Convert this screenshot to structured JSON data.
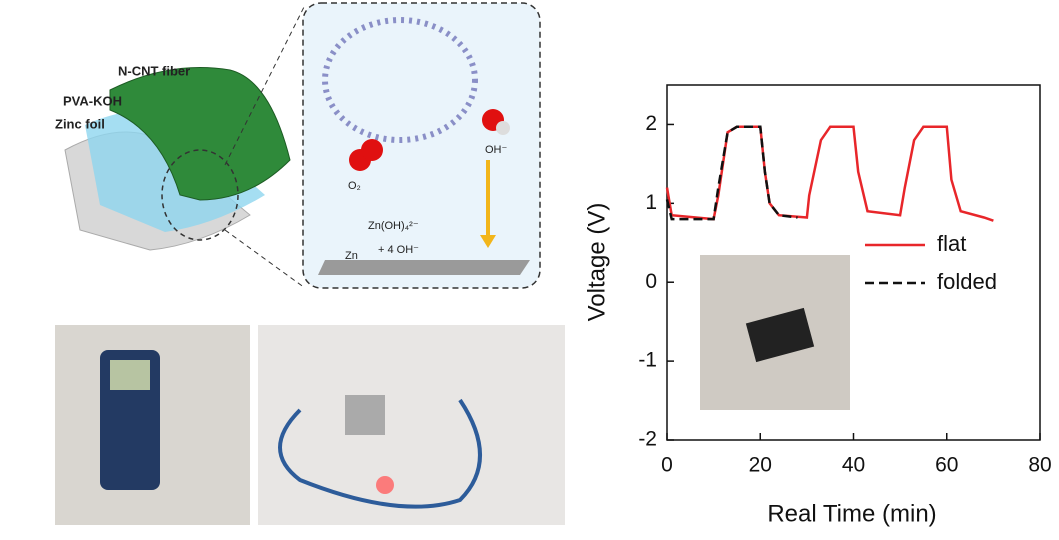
{
  "diagram": {
    "layers": [
      "N-CNT fiber",
      "PVA-KOH",
      "Zinc foil"
    ],
    "zoom_labels": [
      "O₂",
      "OH⁻",
      "Zn(OH)₄²⁻",
      "Zn",
      "+ 4 OH⁻"
    ]
  },
  "chart_data": {
    "type": "line",
    "xlabel": "Real Time (min)",
    "ylabel": "Voltage (V)",
    "xlim": [
      0,
      80
    ],
    "xticks": [
      0,
      20,
      40,
      60,
      80
    ],
    "ylim": [
      -2,
      2.5
    ],
    "yticks": [
      -2,
      -1,
      0,
      1,
      2
    ],
    "legend": "right",
    "series": [
      {
        "name": "flat",
        "color": "#e8262a",
        "dash": false,
        "x": [
          0,
          1,
          10,
          11,
          13,
          15,
          20,
          21,
          22,
          24,
          30,
          30.5,
          33,
          35,
          40,
          41,
          43,
          50,
          51,
          53,
          55,
          60,
          61,
          63,
          68,
          70
        ],
        "values": [
          1.2,
          0.85,
          0.8,
          1.1,
          1.9,
          1.97,
          1.97,
          1.4,
          1.0,
          0.85,
          0.82,
          1.1,
          1.8,
          1.97,
          1.97,
          1.4,
          0.9,
          0.85,
          1.2,
          1.8,
          1.97,
          1.97,
          1.3,
          0.9,
          0.82,
          0.78
        ]
      },
      {
        "name": "folded",
        "color": "#111111",
        "dash": true,
        "x": [
          0,
          1,
          10,
          11,
          13,
          15,
          20,
          21,
          22,
          24,
          28
        ],
        "values": [
          1.05,
          0.8,
          0.8,
          1.2,
          1.9,
          1.97,
          1.97,
          1.4,
          1.0,
          0.85,
          0.82
        ]
      }
    ]
  }
}
